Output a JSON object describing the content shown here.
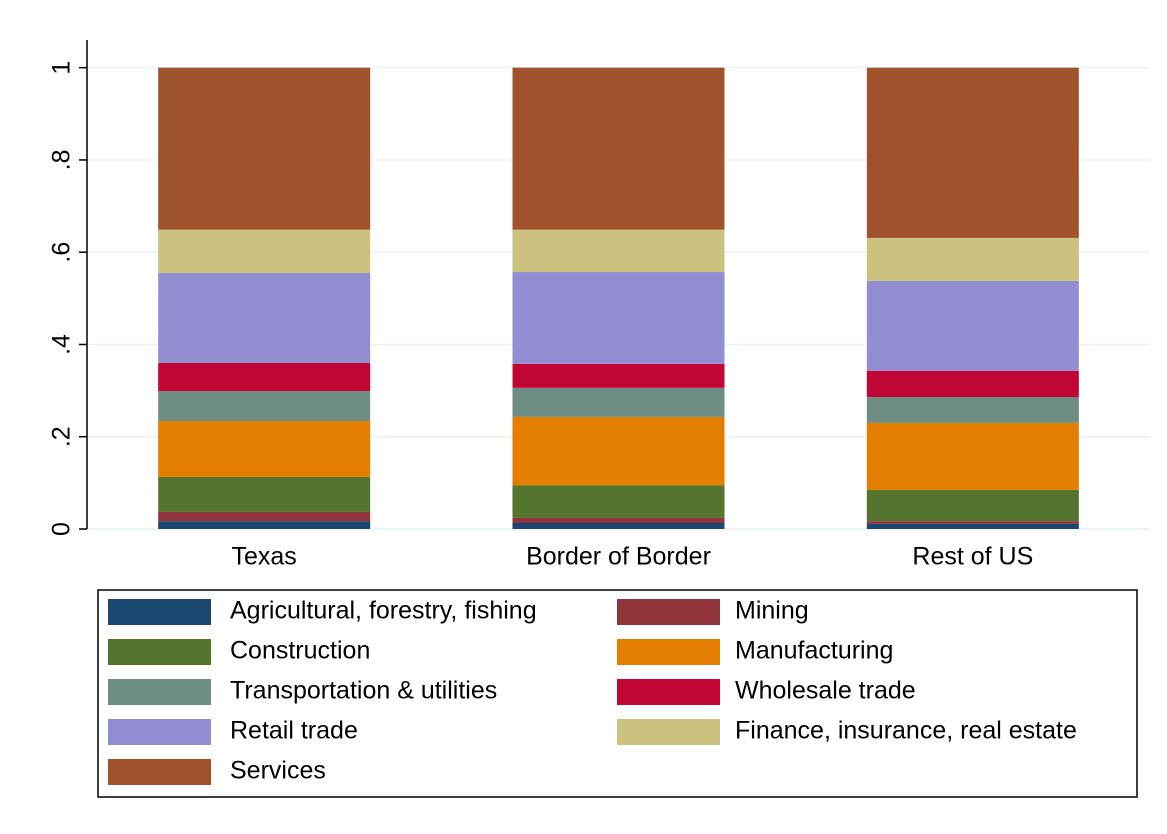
{
  "chart_data": {
    "type": "stacked_bar",
    "categories": [
      "Texas",
      "Border of Border",
      "Rest of US"
    ],
    "series": [
      {
        "name": "Agricultural, forestry, fishing",
        "color": "#1a476f",
        "values": [
          0.017,
          0.013,
          0.011
        ]
      },
      {
        "name": "Mining",
        "color": "#90353b",
        "values": [
          0.02,
          0.011,
          0.006
        ]
      },
      {
        "name": "Construction",
        "color": "#55752f",
        "values": [
          0.076,
          0.071,
          0.068
        ]
      },
      {
        "name": "Manufacturing",
        "color": "#e37e00",
        "values": [
          0.121,
          0.148,
          0.145
        ]
      },
      {
        "name": "Transportation & utilities",
        "color": "#6e8e84",
        "values": [
          0.065,
          0.063,
          0.056
        ]
      },
      {
        "name": "Wholesale trade",
        "color": "#c10534",
        "values": [
          0.061,
          0.052,
          0.057
        ]
      },
      {
        "name": "Retail trade",
        "color": "#938dd2",
        "values": [
          0.195,
          0.199,
          0.195
        ]
      },
      {
        "name": "Finance, insurance, real estate",
        "color": "#cac27e",
        "values": [
          0.094,
          0.092,
          0.093
        ]
      },
      {
        "name": "Services",
        "color": "#a0522d",
        "values": [
          0.351,
          0.351,
          0.369
        ]
      }
    ],
    "ylim": [
      0,
      1.06
    ],
    "yticks": [
      0,
      {
        "value": 0.2,
        "label": ".2"
      },
      {
        "value": 0.4,
        "label": ".4"
      },
      {
        "value": 0.6,
        "label": ".6"
      },
      {
        "value": 0.8,
        "label": ".8"
      },
      1
    ],
    "grid": true,
    "legend": "bottom"
  }
}
